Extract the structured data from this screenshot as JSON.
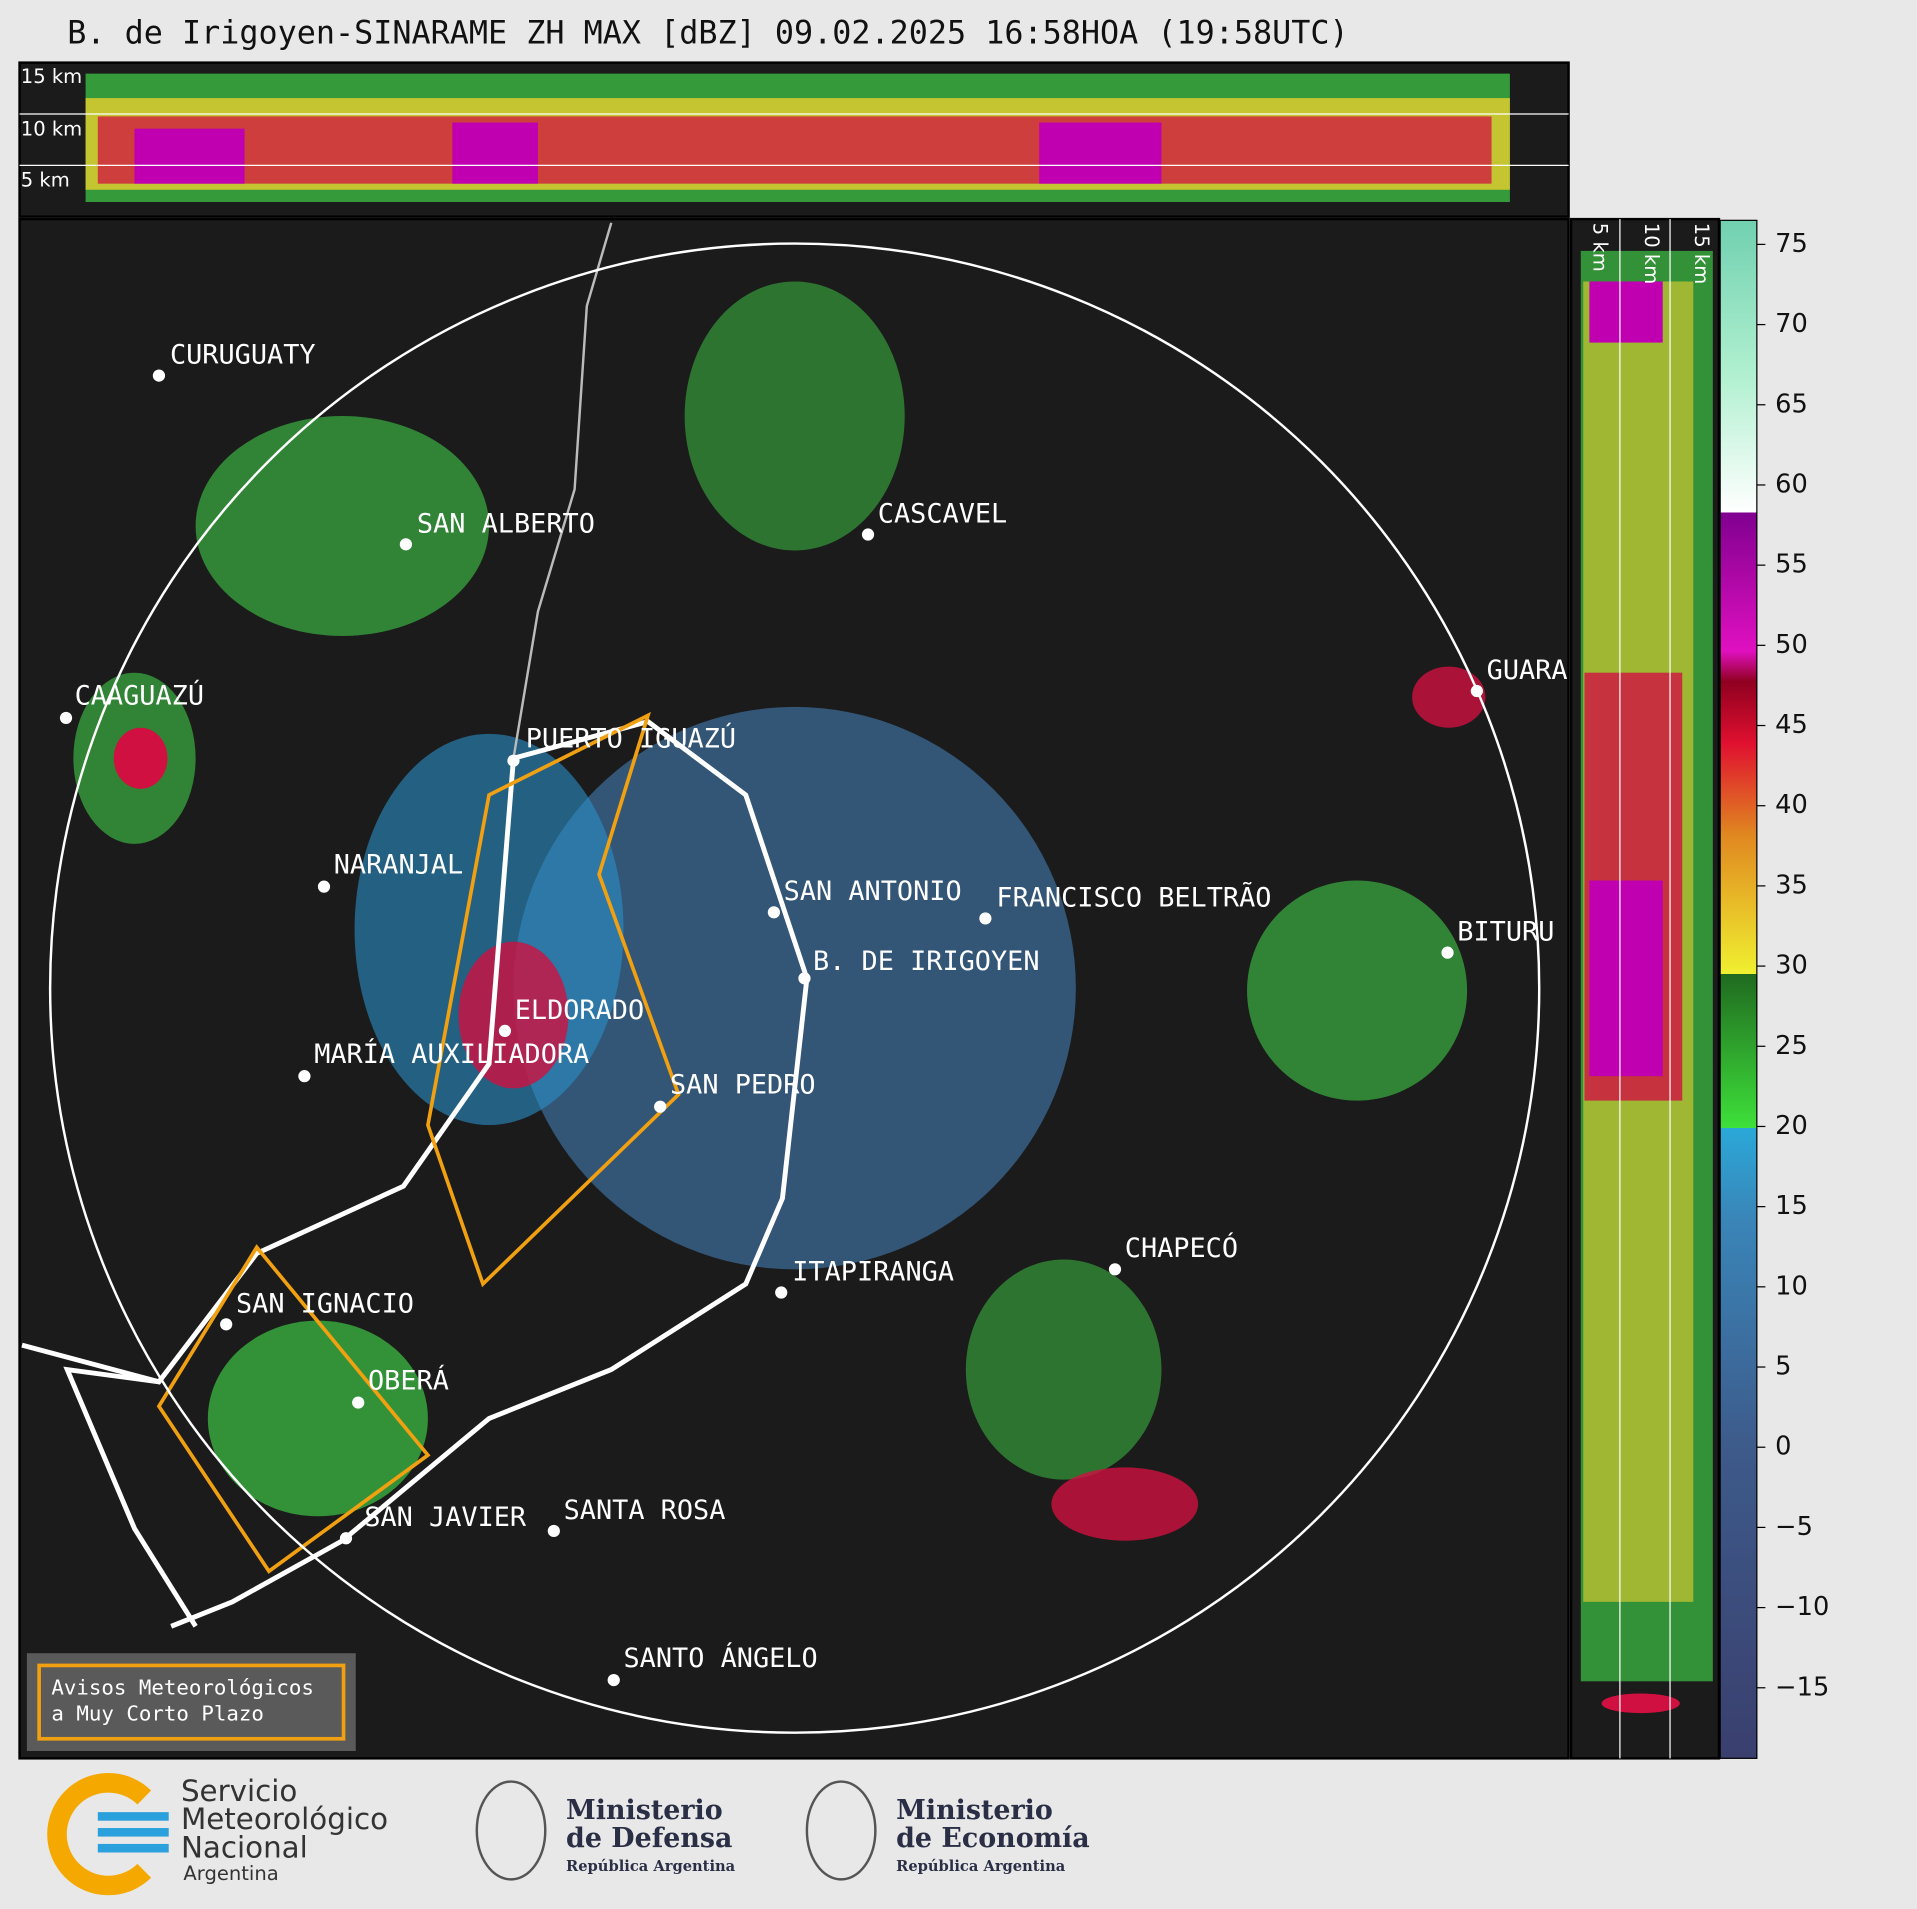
{
  "title": "B. de Irigoyen-SINARAME ZH MAX [dBZ] 09.02.2025 16:58HOA (19:58UTC)",
  "top_profile_labels": [
    "15 km",
    "10 km",
    "5 km"
  ],
  "side_profile_labels": [
    "5 km",
    "10 km",
    "15 km"
  ],
  "cities": [
    {
      "name": "CURUGUATY"
    },
    {
      "name": "SAN ALBERTO"
    },
    {
      "name": "CAAGUAZÚ"
    },
    {
      "name": "PUERTO IGUAZÚ"
    },
    {
      "name": "CASCAVEL"
    },
    {
      "name": "GUARA"
    },
    {
      "name": "NARANJAL"
    },
    {
      "name": "SAN ANTONIO"
    },
    {
      "name": "FRANCISCO BELTRÃO"
    },
    {
      "name": "BITURU"
    },
    {
      "name": "B. DE IRIGOYEN"
    },
    {
      "name": "ELDORADO"
    },
    {
      "name": "MARÍA AUXILIADORA"
    },
    {
      "name": "SAN PEDRO"
    },
    {
      "name": "CHAPECÓ"
    },
    {
      "name": "ITAPIRANGA"
    },
    {
      "name": "SAN IGNACIO"
    },
    {
      "name": "OBERÁ"
    },
    {
      "name": "SAN JAVIER"
    },
    {
      "name": "SANTA ROSA"
    },
    {
      "name": "SANTO ÁNGELO"
    }
  ],
  "colorbar": {
    "lim": [
      -19.4,
      76.5
    ],
    "ticks": [
      75,
      70,
      65,
      60,
      55,
      50,
      45,
      40,
      35,
      30,
      25,
      20,
      15,
      10,
      5,
      0,
      {
        "value": -5,
        "label": "−5"
      },
      {
        "value": -10,
        "label": "−10"
      },
      {
        "value": -15,
        "label": "−15"
      }
    ]
  },
  "legend": [
    "Avisos Meteorológicos",
    "a Muy Corto Plazo"
  ],
  "logos": {
    "smn": [
      "Servicio",
      "Meteorológico",
      "Nacional",
      "Argentina"
    ],
    "defensa": [
      "Ministerio",
      "de Defensa",
      "República Argentina"
    ],
    "economia": [
      "Ministerio",
      "de Economía",
      "República Argentina"
    ]
  }
}
